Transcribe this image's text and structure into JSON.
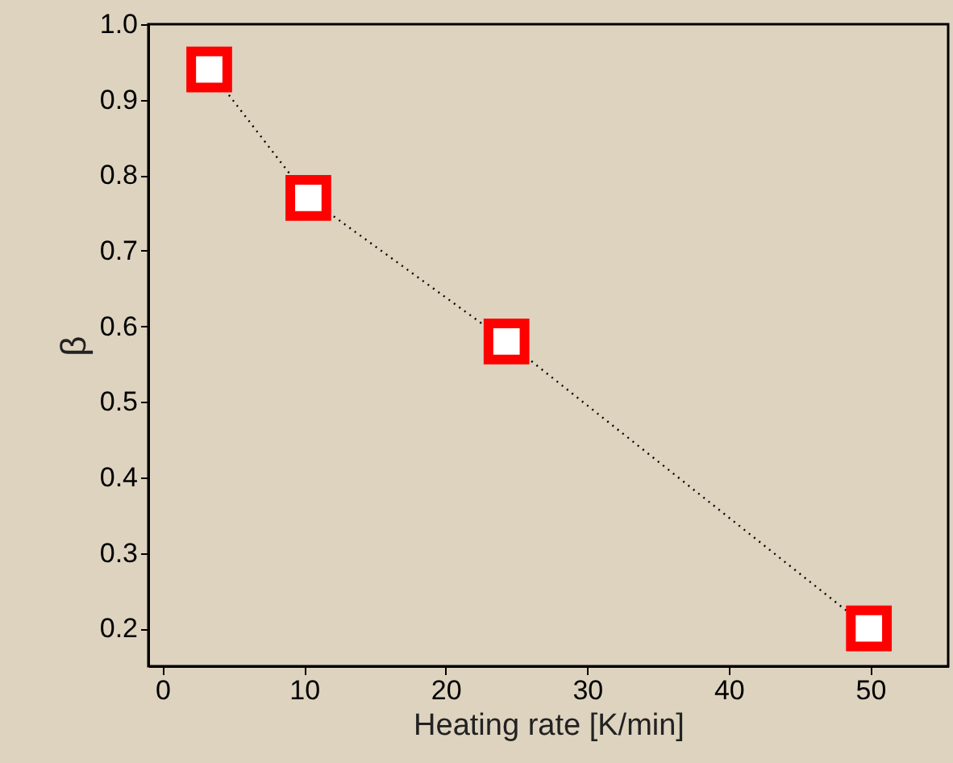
{
  "chart_data": {
    "type": "line",
    "xlabel": "Heating rate [K/min]",
    "ylabel": "β",
    "x": [
      3.3,
      10.3,
      24.3,
      49.9
    ],
    "series": [
      {
        "color": "#ff0000",
        "values": [
          0.94,
          0.77,
          0.58,
          0.2
        ]
      }
    ],
    "marker": "square",
    "line_style": "dotted",
    "xlim": [
      -1,
      55.5
    ],
    "xticks": [
      0,
      10,
      20,
      30,
      40,
      50
    ],
    "ylim": [
      0.15,
      1.0
    ],
    "yticks": [
      {
        "value": 0.2,
        "label": "0.2"
      },
      {
        "value": 0.3,
        "label": "0.3"
      },
      {
        "value": 0.4,
        "label": "0.4"
      },
      {
        "value": 0.5,
        "label": "0.5"
      },
      {
        "value": 0.6,
        "label": "0.6"
      },
      {
        "value": 0.7,
        "label": "0.7"
      },
      {
        "value": 0.8,
        "label": "0.8"
      },
      {
        "value": 0.9,
        "label": "0.9"
      },
      {
        "value": 1.0,
        "label": "1.0"
      }
    ],
    "grid": false
  }
}
